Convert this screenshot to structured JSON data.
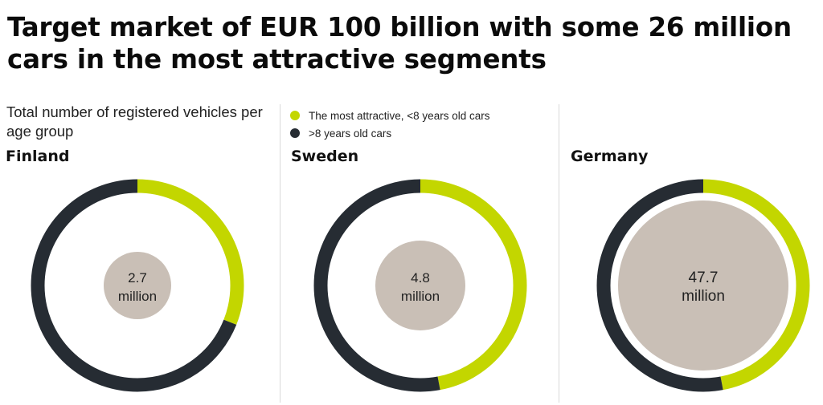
{
  "title": "Target market of EUR 100 billion with some 26 million cars in the most attractive segments",
  "subtitle": "Total number of registered vehicles per age group",
  "colors": {
    "attractive": "#c3d600",
    "older": "#262c33",
    "center": "#c9bfb6",
    "divider": "#d9d9d9"
  },
  "legend": [
    {
      "label": "The most attractive, <8 years old cars",
      "color": "#c3d600"
    },
    {
      "label": ">8 years old cars",
      "color": "#262c33"
    }
  ],
  "chart_data": [
    {
      "type": "pie",
      "country": "Finland",
      "total_value": "2.7",
      "total_unit": "million",
      "series": [
        {
          "name": "The most attractive, <8 years old cars",
          "share": 0.31
        },
        {
          "name": ">8 years old cars",
          "share": 0.69
        }
      ]
    },
    {
      "type": "pie",
      "country": "Sweden",
      "total_value": "4.8",
      "total_unit": "million",
      "series": [
        {
          "name": "The most attractive, <8 years old cars",
          "share": 0.47
        },
        {
          "name": ">8 years old cars",
          "share": 0.53
        }
      ]
    },
    {
      "type": "pie",
      "country": "Germany",
      "total_value": "47.7",
      "total_unit": "million",
      "series": [
        {
          "name": "The most attractive, <8 years old cars",
          "share": 0.47
        },
        {
          "name": ">8 years old cars",
          "share": 0.53
        }
      ]
    }
  ]
}
